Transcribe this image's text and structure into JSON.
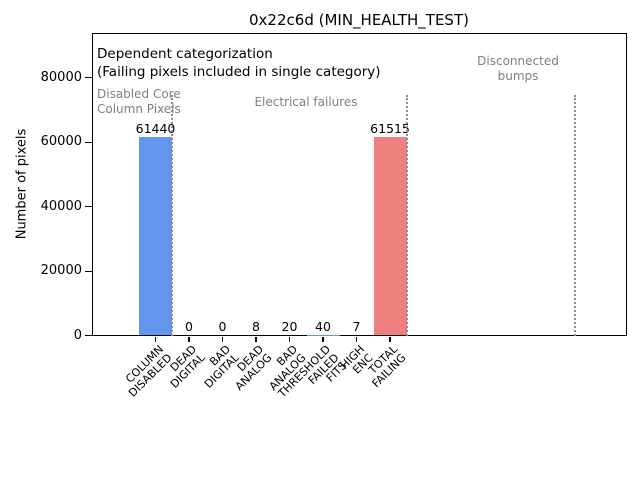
{
  "figure": {
    "title": "0x22c6d (MIN_HEALTH_TEST)"
  },
  "chart_data": {
    "type": "bar",
    "title": "0x22c6d (MIN_HEALTH_TEST)",
    "ylabel": "Number of pixels",
    "xlabel": "",
    "ylim": [
      0,
      93000
    ],
    "grid": false,
    "legend": null,
    "yticks": [
      0,
      20000,
      40000,
      60000,
      80000
    ],
    "categories": [
      "COLUMN\nDISABLED",
      "DEAD\nDIGITAL",
      "BAD\nDIGITAL",
      "DEAD\nANALOG",
      "BAD\nANALOG",
      "THRESHOLD\nFAILED\nFITS",
      "HIGH\nENC",
      "TOTAL\nFAILING"
    ],
    "values": [
      61440,
      0,
      0,
      8,
      20,
      40,
      7,
      61515
    ],
    "value_labels": [
      "61440",
      "0",
      "0",
      "8",
      "20",
      "40",
      "7",
      "61515"
    ],
    "bar_colors": [
      "#6495ed",
      "#6495ed",
      "#6495ed",
      "#6495ed",
      "#6495ed",
      "#6495ed",
      "#6495ed",
      "#f08080"
    ],
    "colors": {
      "highlight_bar": "#6495ed",
      "total_bar": "#f08080",
      "group_text": "#7f7f7f",
      "separator_line": "#8c8c8c",
      "axis": "#000000"
    },
    "annotations": {
      "heading_line1": "Dependent categorization",
      "heading_line2": "(Failing pixels included in single category)",
      "group_disabled": "Disabled Core\nColumn Pixels",
      "group_electrical": "Electrical failures",
      "group_disconnected": "Disconnected\nbumps"
    }
  }
}
